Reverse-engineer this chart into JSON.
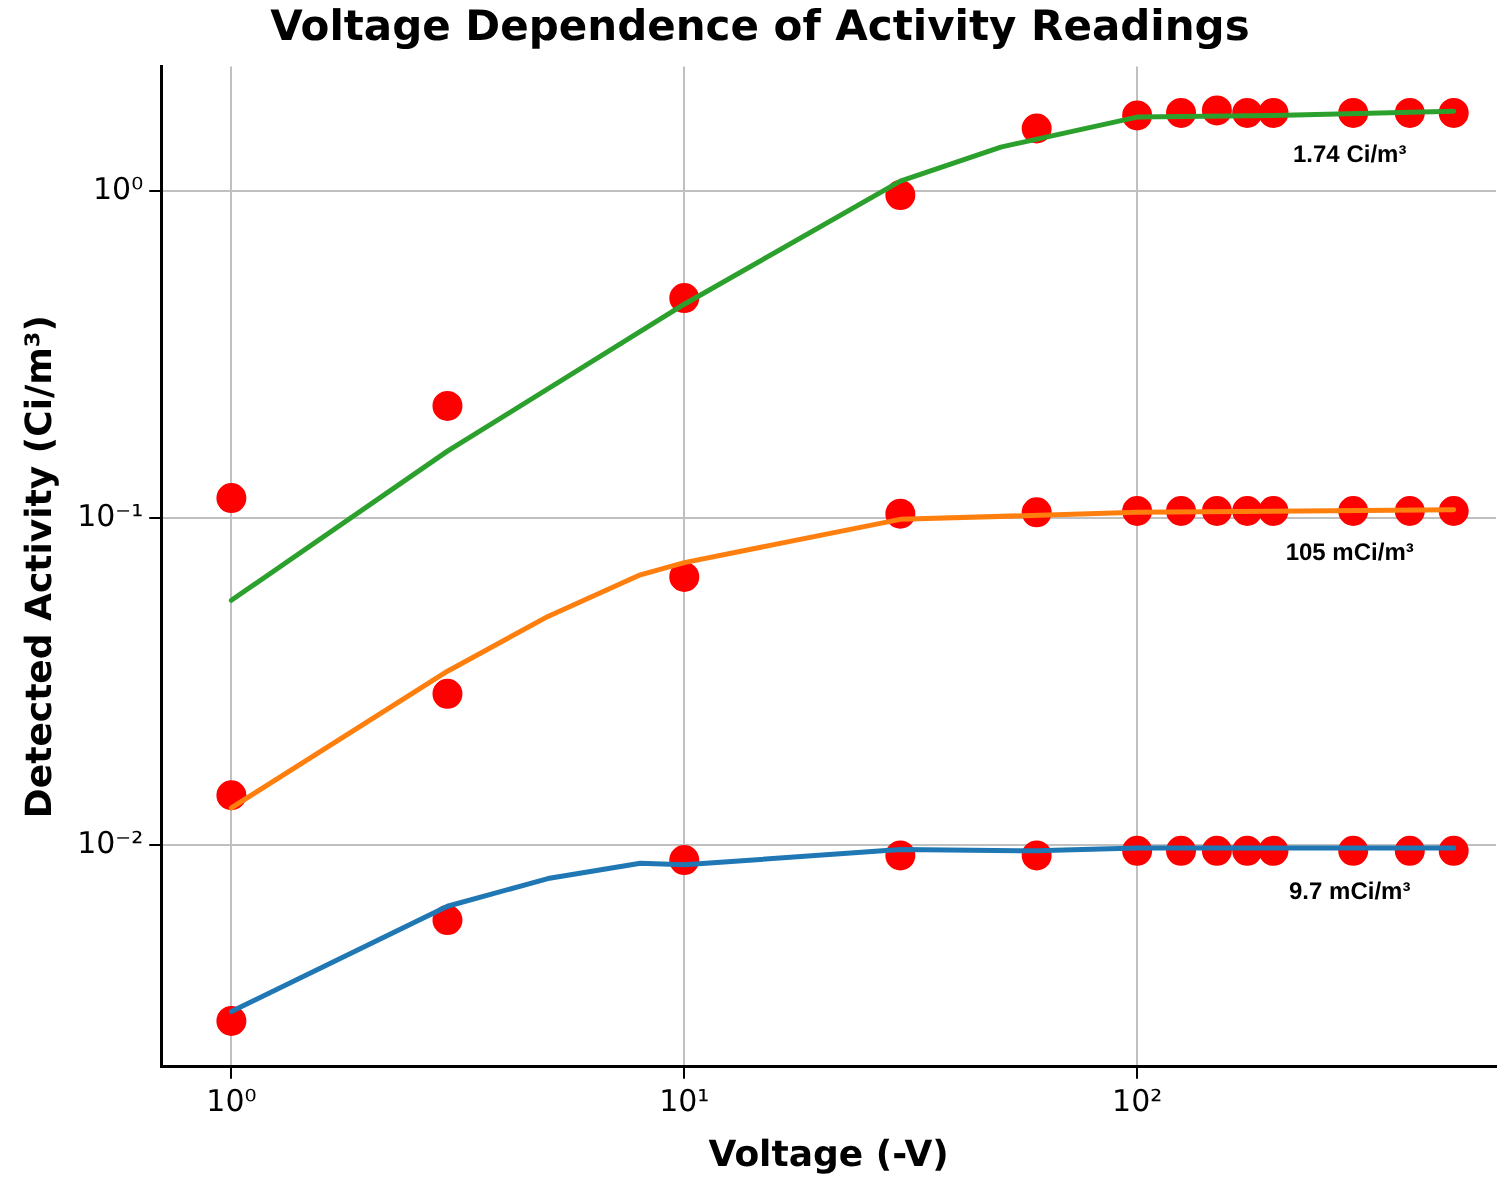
{
  "chart_data": {
    "type": "line",
    "title": "Voltage Dependence of Activity Readings",
    "xlabel": "Voltage (-V)",
    "ylabel": "Detected Activity (Ci/m³)",
    "log": "xy",
    "grid": true,
    "legend": false,
    "xlim": [
      0.72,
      620
    ],
    "xticks": [
      {
        "value": 1,
        "label": "10⁰"
      },
      {
        "value": 10,
        "label": "10¹"
      },
      {
        "value": 100,
        "label": "10²"
      }
    ],
    "ylim": [
      0.0021,
      2.4
    ],
    "yticks": [
      {
        "value": 0.01,
        "label": "10⁻²"
      },
      {
        "value": 0.1,
        "label": "10⁻¹"
      },
      {
        "value": 1,
        "label": "10⁰"
      }
    ],
    "series": [
      {
        "marker": "none",
        "color": "#2ca02c",
        "x": [
          1,
          3,
          10,
          30,
          50,
          100,
          200,
          500
        ],
        "values": [
          0.056,
          0.16,
          0.45,
          1.07,
          1.36,
          1.68,
          1.7,
          1.75
        ]
      },
      {
        "marker": "none",
        "color": "#ff7f0e",
        "x": [
          1,
          3,
          5,
          8,
          10,
          30,
          100,
          500
        ],
        "values": [
          0.013,
          0.034,
          0.05,
          0.067,
          0.073,
          0.099,
          0.104,
          0.106
        ]
      },
      {
        "marker": "none",
        "color": "#1f77b4",
        "x": [
          1,
          3,
          5,
          8,
          10,
          30,
          60,
          100,
          500
        ],
        "values": [
          0.0031,
          0.0065,
          0.0079,
          0.0088,
          0.0087,
          0.0097,
          0.0096,
          0.0098,
          0.0098
        ]
      },
      {
        "type": "scatter",
        "marker": "circle",
        "color": "#ff0000",
        "x": [
          1,
          3,
          10,
          30,
          60,
          100,
          125,
          150,
          175,
          200,
          300,
          400,
          500
        ],
        "values": [
          0.115,
          0.22,
          0.47,
          0.97,
          1.55,
          1.7,
          1.73,
          1.76,
          1.73,
          1.73,
          1.73,
          1.73,
          1.73
        ]
      },
      {
        "type": "scatter",
        "marker": "circle",
        "color": "#ff0000",
        "x": [
          1,
          3,
          10,
          30,
          60,
          100,
          125,
          150,
          175,
          200,
          300,
          400,
          500
        ],
        "values": [
          0.0142,
          0.029,
          0.066,
          0.103,
          0.104,
          0.105,
          0.105,
          0.105,
          0.105,
          0.105,
          0.105,
          0.105,
          0.105
        ]
      },
      {
        "type": "scatter",
        "marker": "circle",
        "color": "#ff0000",
        "x": [
          1,
          3,
          10,
          30,
          60,
          100,
          125,
          150,
          175,
          200,
          300,
          400,
          500
        ],
        "values": [
          0.0029,
          0.0059,
          0.009,
          0.0093,
          0.0093,
          0.0096,
          0.0096,
          0.0096,
          0.0096,
          0.0096,
          0.0096,
          0.0096,
          0.0096
        ]
      }
    ],
    "annotations": [
      "1.74 Ci/m³",
      "105 mCi/m³",
      "9.7 mCi/m³"
    ]
  }
}
